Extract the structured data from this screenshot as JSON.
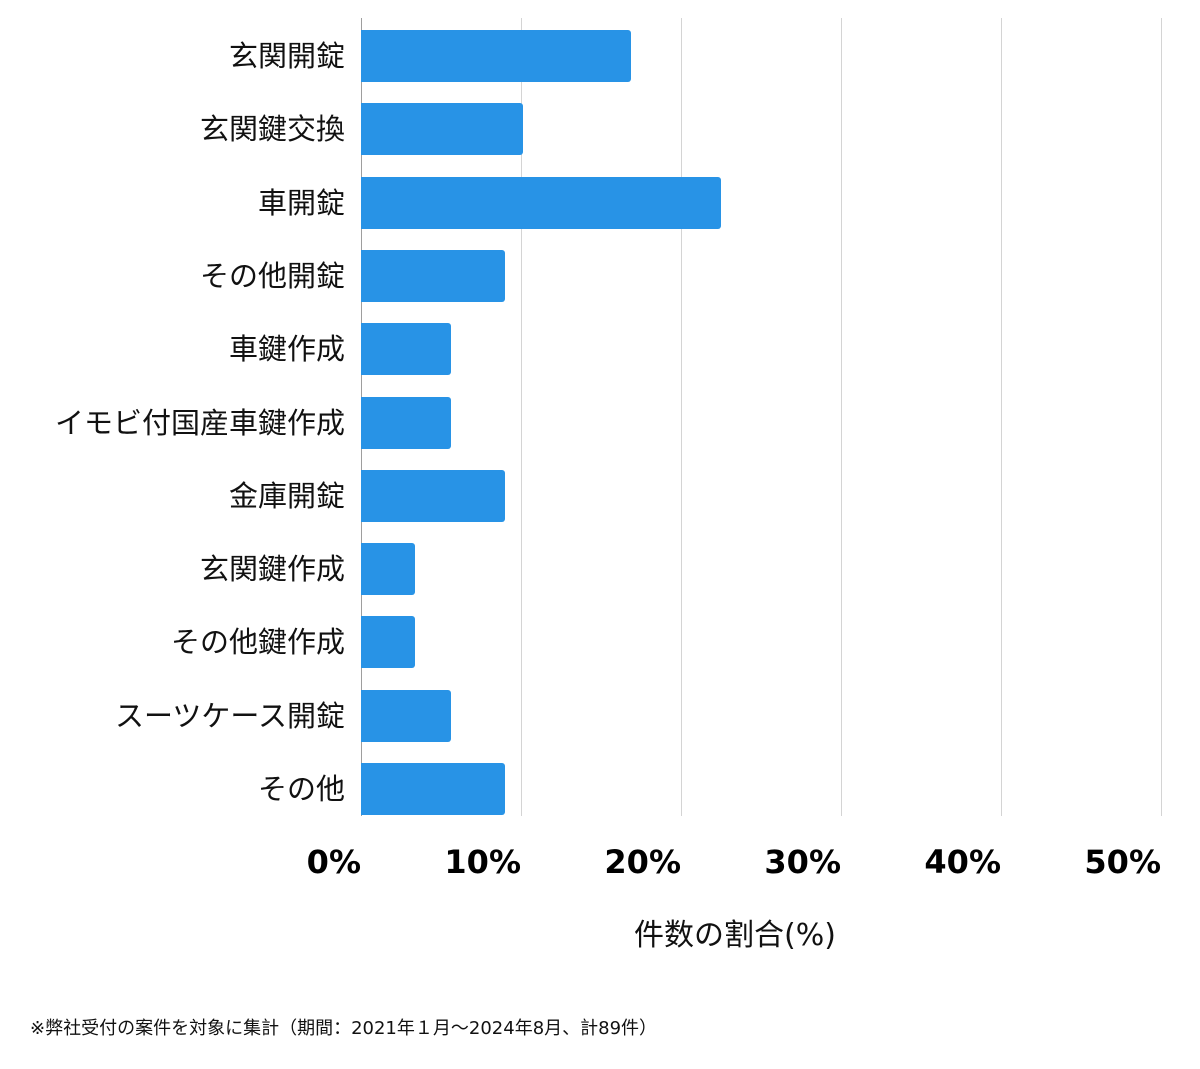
{
  "chart_data": {
    "type": "bar",
    "orientation": "horizontal",
    "title": "",
    "categories": [
      "玄関開錠",
      "玄関鍵交換",
      "車開錠",
      "その他開錠",
      "車鍵作成",
      "イモビ付国産車鍵作成",
      "金庫開錠",
      "玄関鍵作成",
      "その他鍵作成",
      "スーツケース開錠",
      "その他"
    ],
    "values": [
      16.85,
      10.11,
      22.47,
      8.99,
      5.62,
      5.62,
      8.99,
      3.37,
      3.37,
      5.62,
      8.99
    ],
    "xlabel": "件数の割合(%)",
    "ylabel": "",
    "xlim": [
      0,
      50
    ],
    "x_ticks": [
      "0%",
      "10%",
      "20%",
      "30%",
      "40%",
      "50%"
    ],
    "grid": true,
    "legend": null,
    "bar_color": "#2893e6",
    "footnote": "※弊社受付の案件を対象に集計（期間：2021年１月〜2024年8月、計89件）"
  },
  "colors": {
    "bar": "#2893e6",
    "grid": "#d4d4d4",
    "axis": "#9e9e9e"
  }
}
